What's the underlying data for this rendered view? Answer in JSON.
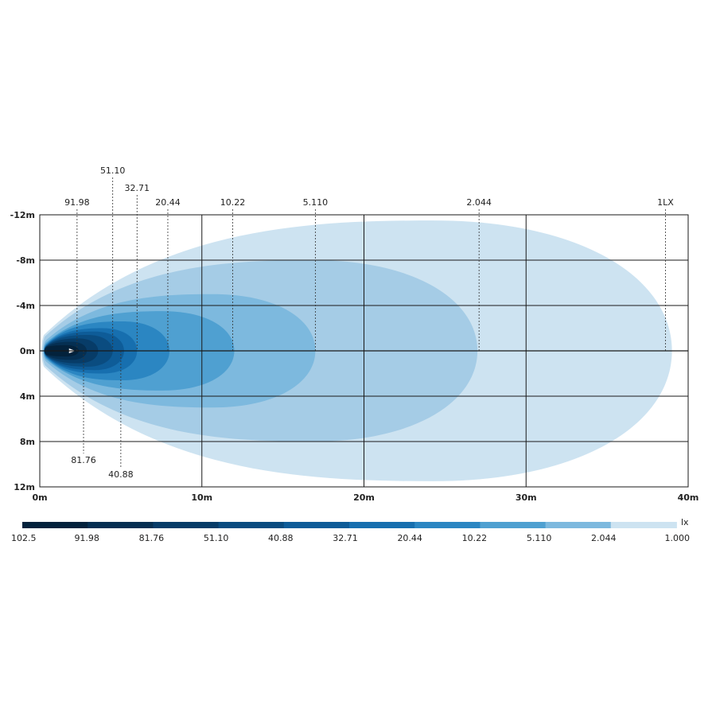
{
  "chart_data": {
    "type": "heatmap",
    "title": "",
    "xlabel": "",
    "ylabel": "",
    "xlim": [
      0,
      40
    ],
    "ylim": [
      -12,
      12
    ],
    "x_ticks": [
      "0m",
      "10m",
      "20m",
      "30m",
      "40m"
    ],
    "y_ticks": [
      "-12m",
      "-8m",
      "-4m",
      "0m",
      "4m",
      "8m",
      "12m"
    ],
    "grid": true,
    "isolux_contours": [
      {
        "label": "1LX",
        "value": 1.0,
        "reach_m": 39.0,
        "half_width_m": 11.5,
        "color": "#cde3f1"
      },
      {
        "label": "2.044",
        "value": 2.044,
        "reach_m": 27.0,
        "half_width_m": 8.0,
        "color": "#a5cce6"
      },
      {
        "label": "5.110",
        "value": 5.11,
        "reach_m": 17.0,
        "half_width_m": 5.0,
        "color": "#7db9de"
      },
      {
        "label": "10.22",
        "value": 10.22,
        "reach_m": 12.0,
        "half_width_m": 3.5,
        "color": "#4fa0d1"
      },
      {
        "label": "20.44",
        "value": 20.44,
        "reach_m": 8.0,
        "half_width_m": 2.6,
        "color": "#2b86c2"
      },
      {
        "label": "32.71",
        "value": 32.71,
        "reach_m": 6.0,
        "half_width_m": 2.0,
        "color": "#176faf"
      },
      {
        "label": "40.88",
        "value": 40.88,
        "reach_m": 5.2,
        "half_width_m": 1.7,
        "color": "#0e5c98"
      },
      {
        "label": "51.10",
        "value": 51.1,
        "reach_m": 4.5,
        "half_width_m": 1.4,
        "color": "#0a4c80"
      },
      {
        "label": "81.76",
        "value": 81.76,
        "reach_m": 3.6,
        "half_width_m": 1.1,
        "color": "#073c68"
      },
      {
        "label": "91.98",
        "value": 91.98,
        "reach_m": 2.9,
        "half_width_m": 0.8,
        "color": "#052f52"
      },
      {
        "label": "102.5",
        "value": 102.5,
        "reach_m": 2.4,
        "half_width_m": 0.5,
        "color": "#03223c"
      }
    ],
    "top_markers": [
      {
        "label": "91.98",
        "x_m": 2.3
      },
      {
        "label": "51.10",
        "x_m": 4.5
      },
      {
        "label": "32.71",
        "x_m": 6.0
      },
      {
        "label": "20.44",
        "x_m": 7.9
      },
      {
        "label": "10.22",
        "x_m": 11.9
      },
      {
        "label": "5.110",
        "x_m": 17.0
      },
      {
        "label": "2.044",
        "x_m": 27.1
      },
      {
        "label": "1LX",
        "x_m": 38.6
      }
    ],
    "bottom_markers": [
      {
        "label": "81.76",
        "x_m": 2.7
      },
      {
        "label": "40.88",
        "x_m": 5.0
      }
    ],
    "legend": {
      "unit": "lx",
      "placement": "bottom",
      "labels": [
        "102.5",
        "91.98",
        "81.76",
        "51.10",
        "40.88",
        "32.71",
        "20.44",
        "10.22",
        "5.110",
        "2.044",
        "1.000"
      ],
      "colors": [
        "#03223c",
        "#052f52",
        "#073c68",
        "#0a4c80",
        "#0e5c98",
        "#176faf",
        "#2b86c2",
        "#4fa0d1",
        "#7db9de",
        "#a5cce6",
        "#cde3f1"
      ]
    }
  }
}
